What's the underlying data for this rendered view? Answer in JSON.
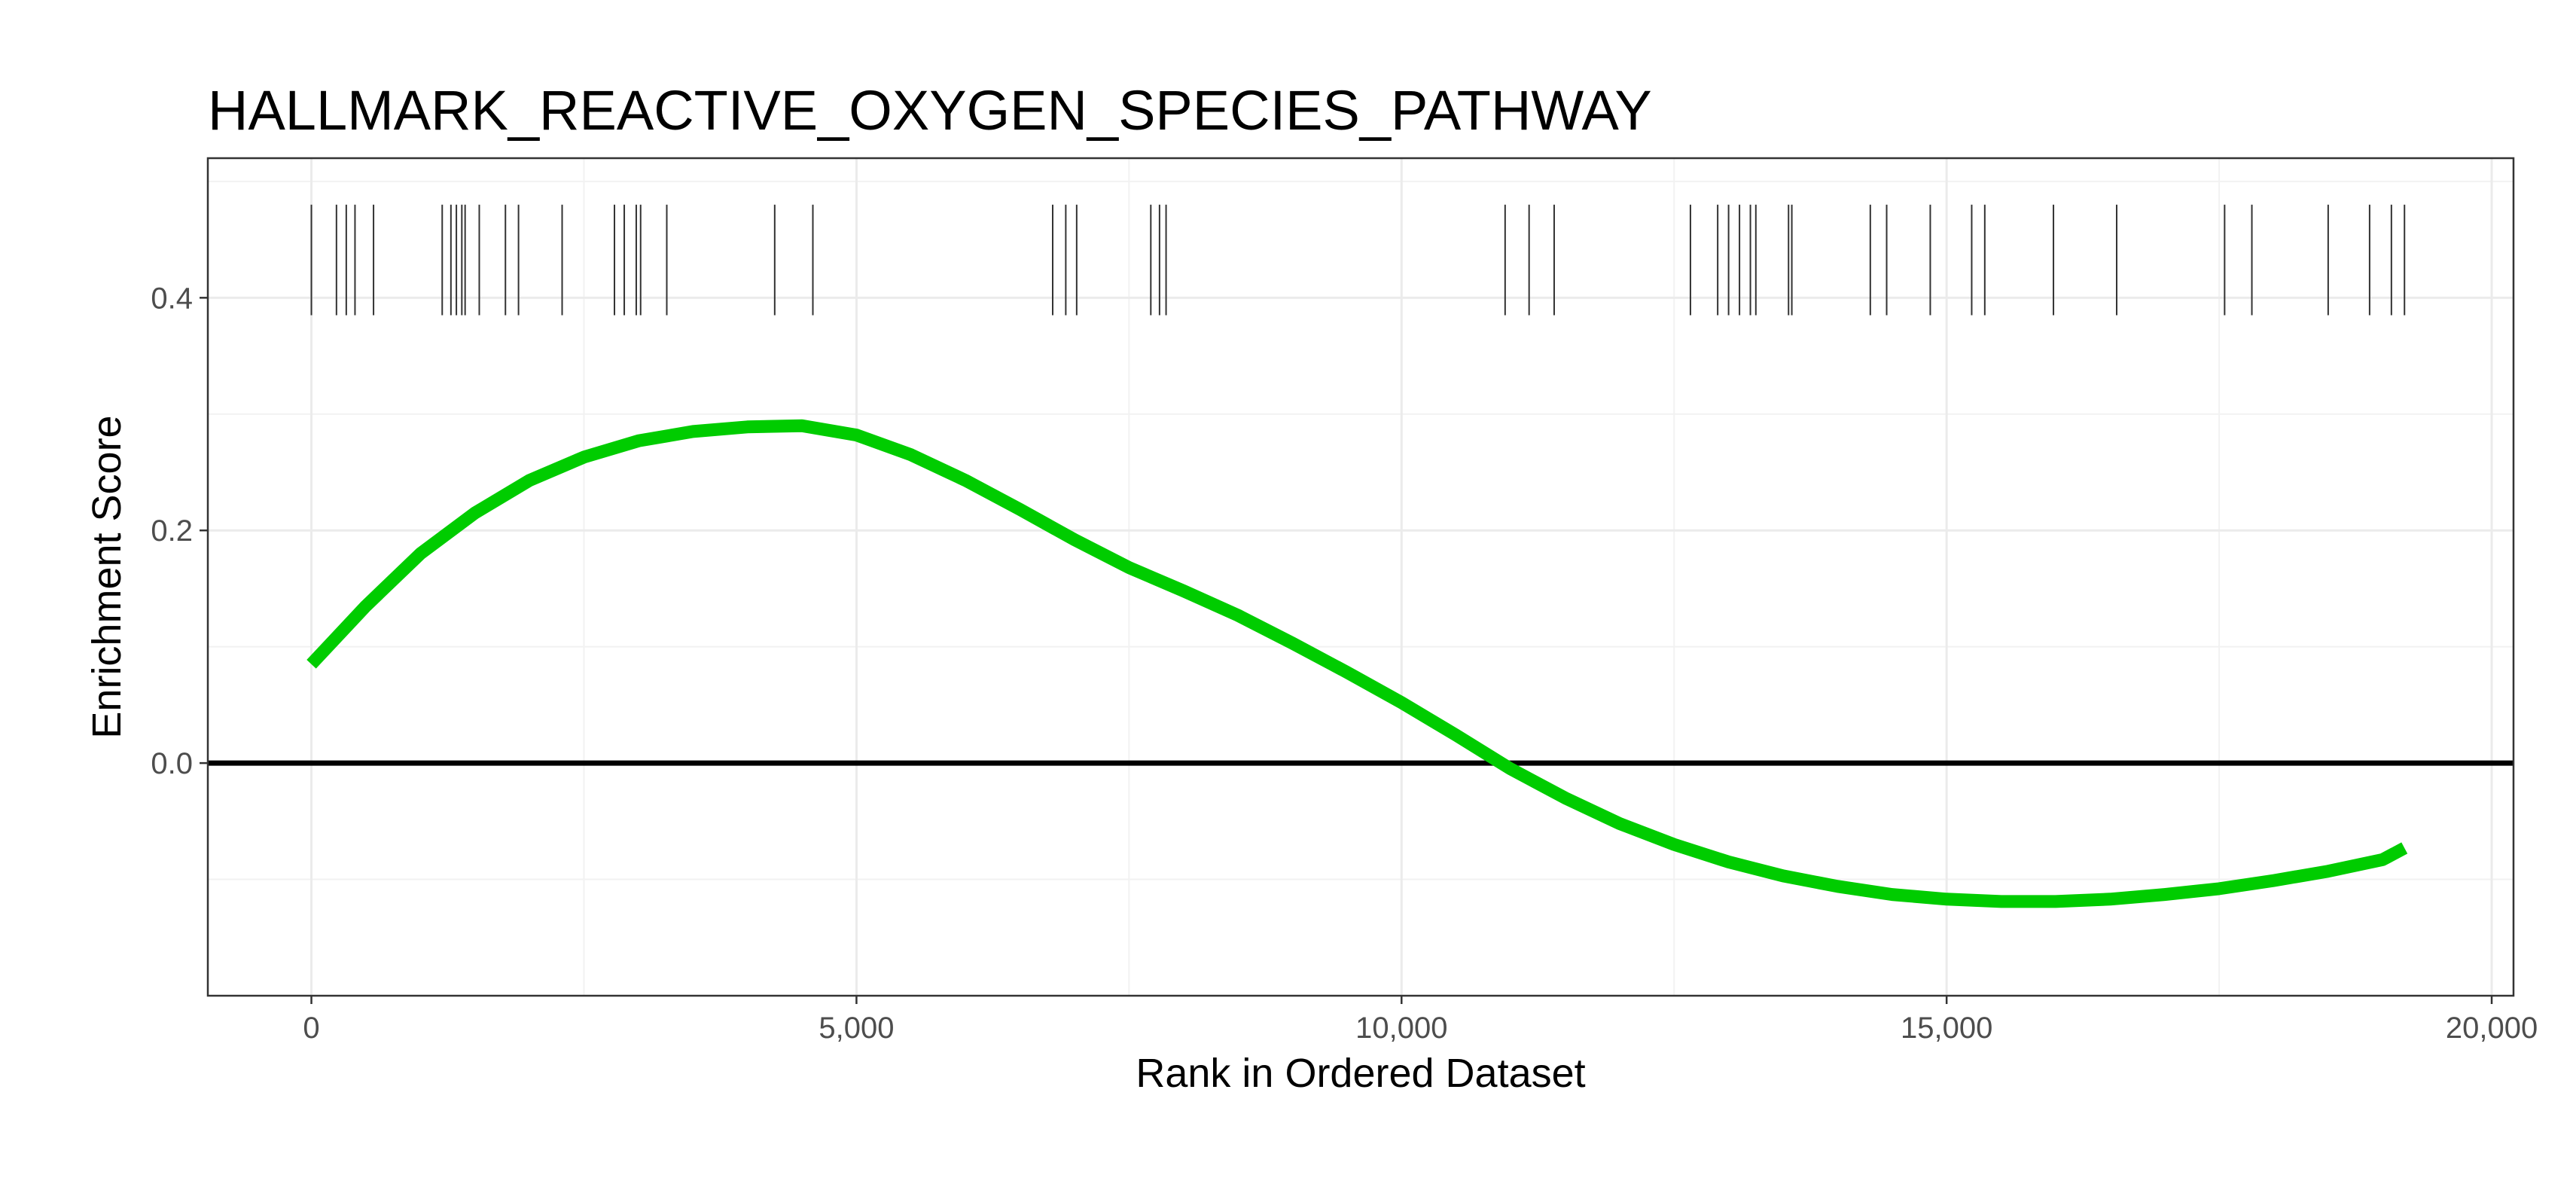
{
  "chart_data": {
    "type": "line",
    "title": "HALLMARK_REACTIVE_OXYGEN_SPECIES_PATHWAY",
    "xlabel": "Rank in Ordered Dataset",
    "ylabel": "Enrichment Score",
    "xlim": [
      -950,
      20200
    ],
    "ylim": [
      -0.2,
      0.52
    ],
    "x_ticks": [
      0,
      5000,
      10000,
      15000,
      20000
    ],
    "x_tick_labels": [
      "0",
      "5,000",
      "10,000",
      "15,000",
      "20,000"
    ],
    "y_ticks": [
      0.0,
      0.2,
      0.4
    ],
    "y_tick_labels": [
      "0.0",
      "0.2",
      "0.4"
    ],
    "grid": true,
    "zero_line": 0.0,
    "series": [
      {
        "color": "#00CC00",
        "x": [
          0,
          500,
          1000,
          1500,
          2000,
          2500,
          3000,
          3500,
          4000,
          4500,
          5000,
          5500,
          6000,
          6500,
          7000,
          7500,
          8000,
          8500,
          9000,
          9500,
          10000,
          10500,
          11000,
          11500,
          12000,
          12500,
          13000,
          13500,
          14000,
          14500,
          15000,
          15500,
          16000,
          16500,
          17000,
          17500,
          18000,
          18500,
          19000,
          19200
        ],
        "y": [
          0.085,
          0.135,
          0.18,
          0.215,
          0.243,
          0.263,
          0.277,
          0.285,
          0.289,
          0.29,
          0.282,
          0.265,
          0.243,
          0.218,
          0.192,
          0.168,
          0.148,
          0.127,
          0.103,
          0.078,
          0.052,
          0.024,
          -0.005,
          -0.03,
          -0.052,
          -0.07,
          -0.085,
          -0.097,
          -0.106,
          -0.113,
          -0.117,
          -0.119,
          -0.119,
          -0.117,
          -0.113,
          -0.108,
          -0.101,
          -0.093,
          -0.083,
          -0.073
        ]
      }
    ],
    "gene_hits": [
      0,
      230,
      320,
      400,
      570,
      1200,
      1280,
      1330,
      1380,
      1410,
      1540,
      1780,
      1900,
      2300,
      2780,
      2870,
      2980,
      3020,
      3260,
      4250,
      4600,
      6800,
      6920,
      7020,
      7700,
      7780,
      7840,
      10950,
      11170,
      11400,
      12650,
      12900,
      13000,
      13100,
      13200,
      13250,
      13550,
      13580,
      14300,
      14450,
      14850,
      15230,
      15350,
      15980,
      16560,
      17550,
      17800,
      18500,
      18880,
      19080,
      19200
    ],
    "hit_band": [
      0.385,
      0.48
    ]
  }
}
